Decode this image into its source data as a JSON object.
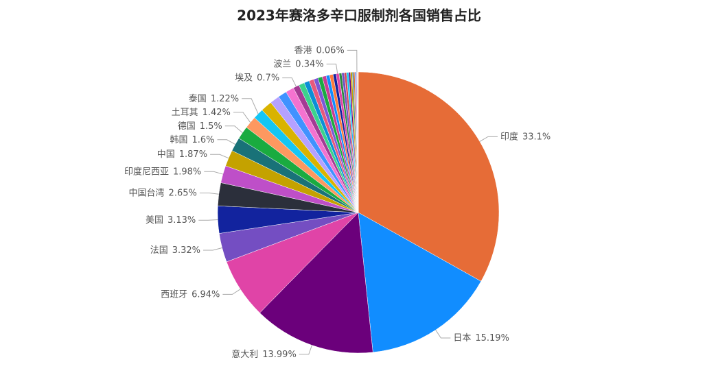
{
  "chart_data": {
    "type": "pie",
    "title": "2023年赛洛多辛口服制剂各国销售占比",
    "categories": [
      "印度",
      "日本",
      "意大利",
      "西班牙",
      "法国",
      "美国",
      "中国台湾",
      "印度尼西亚",
      "中国",
      "韩国",
      "德国",
      "土耳其",
      "泰国",
      null,
      null,
      null,
      null,
      "埃及",
      null,
      null,
      null,
      null,
      null,
      null,
      null,
      null,
      null,
      "波兰",
      null,
      null,
      null,
      null,
      null,
      null,
      null,
      null,
      null,
      null,
      "香港",
      null,
      null,
      null
    ],
    "values": [
      33.1,
      15.19,
      13.99,
      6.94,
      3.32,
      3.13,
      2.65,
      1.98,
      1.87,
      1.6,
      1.5,
      1.42,
      1.22,
      1.3,
      1.1,
      1.0,
      0.95,
      0.7,
      0.65,
      0.6,
      0.55,
      0.5,
      0.5,
      0.45,
      0.4,
      0.4,
      0.35,
      0.34,
      0.3,
      0.3,
      0.25,
      0.25,
      0.2,
      0.2,
      0.15,
      0.15,
      0.1,
      0.1,
      0.06,
      0.05,
      0.05,
      0.03
    ],
    "value_labels": [
      "33.1%",
      "15.19%",
      "13.99%",
      "6.94%",
      "3.32%",
      "3.13%",
      "2.65%",
      "1.98%",
      "1.87%",
      "1.6%",
      "1.5%",
      "1.42%",
      "1.22%",
      null,
      null,
      null,
      null,
      "0.7%",
      null,
      null,
      null,
      null,
      null,
      null,
      null,
      null,
      null,
      "0.34%",
      null,
      null,
      null,
      null,
      null,
      null,
      null,
      null,
      null,
      null,
      "0.06%",
      null,
      null,
      null
    ],
    "colors": [
      "#e66c37",
      "#118dff",
      "#6b007b",
      "#e044a7",
      "#744ec2",
      "#12239e",
      "#2b2f3b",
      "#be4fc8",
      "#c4a200",
      "#197278",
      "#1aab40",
      "#fd9860",
      "#15c6f4",
      "#d9b300",
      "#b5a1ff",
      "#4092ff",
      "#f472d0",
      "#a43b94",
      "#3bd38c",
      "#0b8fd6",
      "#e7597c",
      "#7b58d6",
      "#1aab40",
      "#c83d95",
      "#118dff",
      "#fe7a3b",
      "#12239e",
      "#e044a7",
      "#2b8a3e",
      "#744ec2",
      "#d64550",
      "#15c6f4",
      "#6b007b",
      "#c4a200",
      "#197278",
      "#e66c37",
      "#118dff",
      "#be4fc8",
      "#1aab40",
      "#fd9860",
      "#5f6b6d",
      "#d9b300"
    ]
  }
}
